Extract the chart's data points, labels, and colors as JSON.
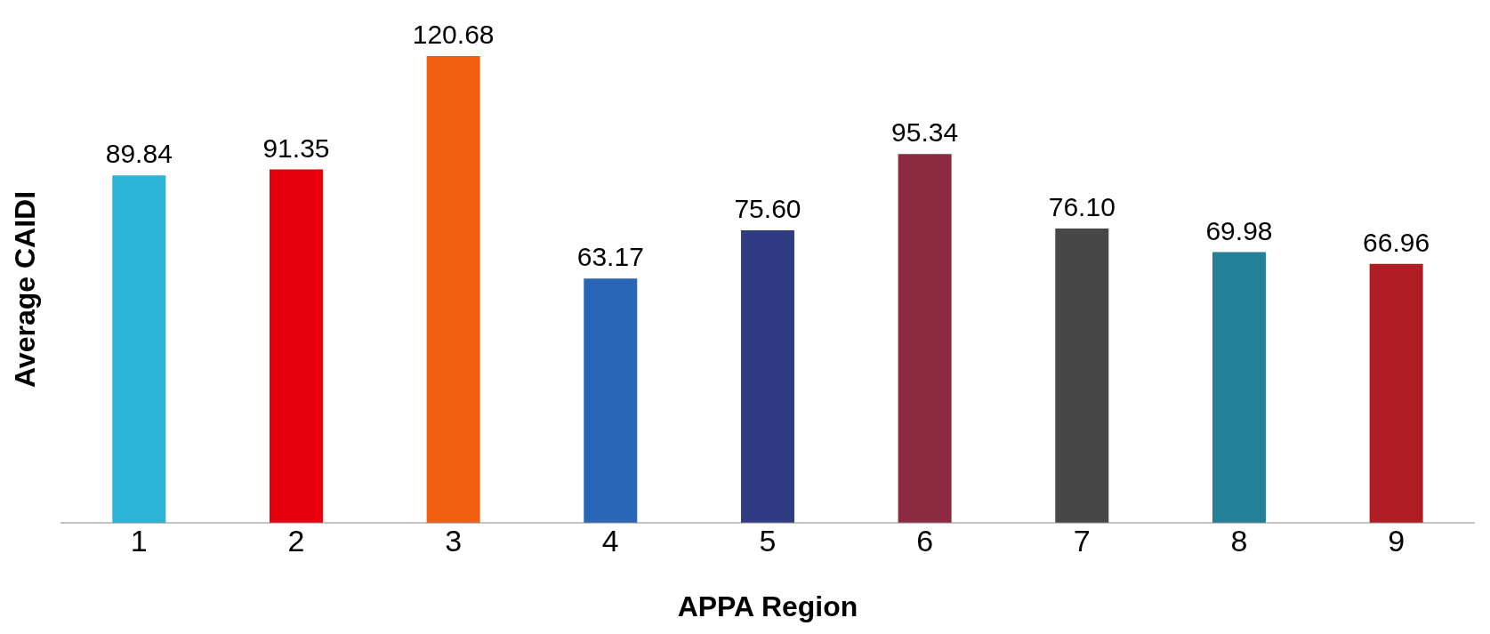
{
  "chart_data": {
    "type": "bar",
    "xlabel": "APPA Region",
    "ylabel": "Average CAIDI",
    "categories": [
      "1",
      "2",
      "3",
      "4",
      "5",
      "6",
      "7",
      "8",
      "9"
    ],
    "values": [
      89.84,
      91.35,
      120.68,
      63.17,
      75.6,
      95.34,
      76.1,
      69.98,
      66.96
    ],
    "value_labels": [
      "89.84",
      "91.35",
      "120.68",
      "63.17",
      "75.60",
      "95.34",
      "76.10",
      "69.98",
      "66.96"
    ],
    "colors": [
      "#2bb5d8",
      "#e8000f",
      "#f06010",
      "#2a66b8",
      "#2f3b85",
      "#8b2a40",
      "#474747",
      "#238098",
      "#b01c24"
    ],
    "grid": false
  }
}
